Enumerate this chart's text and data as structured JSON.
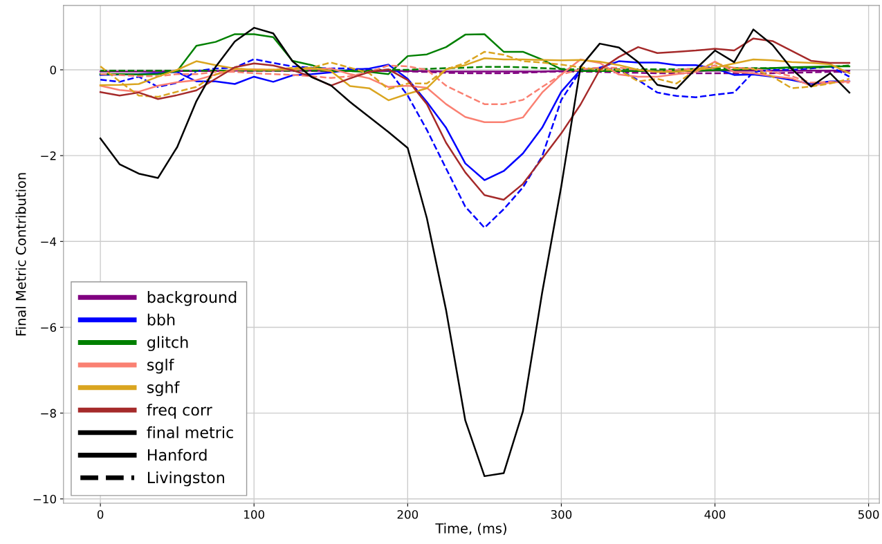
{
  "chart_data": {
    "type": "line",
    "xlabel": "Time, (ms)",
    "ylabel": "Final Metric Contribution",
    "x": [
      0,
      12.5,
      25,
      37.5,
      50,
      62.5,
      75,
      87.5,
      100,
      112.5,
      125,
      137.5,
      150,
      162.5,
      175,
      187.5,
      200,
      212.5,
      225,
      237.5,
      250,
      262.5,
      275,
      287.5,
      300,
      312.5,
      325,
      337.5,
      350,
      362.5,
      375,
      387.5,
      400,
      412.5,
      425,
      437.5,
      450,
      462.5,
      475,
      487.5
    ],
    "xlim": [
      -24,
      507
    ],
    "xticks": [
      0,
      100,
      200,
      300,
      400,
      500
    ],
    "ylim": [
      -10.1,
      1.5
    ],
    "yticks": [
      {
        "value": -10,
        "label": "−10"
      },
      {
        "value": -8,
        "label": "−8"
      },
      {
        "value": -6,
        "label": "−6"
      },
      {
        "value": -4,
        "label": "−4"
      },
      {
        "value": -2,
        "label": "−2"
      },
      0
    ],
    "grid": true,
    "legend": "lower left",
    "line_style": "solid",
    "series": [
      {
        "name": "background",
        "color": "#800080",
        "values": [
          -0.04,
          -0.04,
          -0.04,
          -0.04,
          -0.03,
          -0.03,
          -0.03,
          -0.02,
          -0.02,
          -0.02,
          -0.02,
          -0.02,
          -0.03,
          -0.03,
          -0.03,
          -0.03,
          -0.03,
          -0.03,
          -0.04,
          -0.04,
          -0.04,
          -0.04,
          -0.04,
          -0.04,
          -0.03,
          -0.03,
          -0.03,
          -0.03,
          -0.03,
          -0.03,
          -0.03,
          -0.03,
          -0.02,
          -0.02,
          -0.02,
          -0.02,
          -0.02,
          -0.02,
          -0.02,
          -0.02
        ]
      },
      {
        "color": "#800080",
        "line_style": "dashed",
        "values": [
          -0.02,
          -0.02,
          -0.02,
          -0.02,
          -0.02,
          -0.02,
          -0.02,
          -0.02,
          -0.02,
          -0.02,
          -0.02,
          -0.03,
          -0.03,
          -0.03,
          -0.03,
          -0.03,
          -0.04,
          -0.05,
          -0.07,
          -0.08,
          -0.08,
          -0.08,
          -0.07,
          -0.05,
          -0.04,
          -0.04,
          -0.05,
          -0.06,
          -0.07,
          -0.08,
          -0.08,
          -0.08,
          -0.08,
          -0.08,
          -0.08,
          -0.08,
          -0.07,
          -0.06,
          -0.05,
          -0.05
        ]
      },
      {
        "name": "bbh",
        "color": "#0000ff",
        "values": [
          -0.12,
          -0.11,
          -0.1,
          -0.08,
          -0.05,
          -0.27,
          -0.27,
          -0.33,
          -0.16,
          -0.28,
          -0.13,
          -0.1,
          -0.06,
          0,
          0.03,
          0.12,
          -0.21,
          -0.75,
          -1.35,
          -2.18,
          -2.57,
          -2.36,
          -1.95,
          -1.35,
          -0.51,
          0,
          0.05,
          0.2,
          0.17,
          0.17,
          0.11,
          0.11,
          0.03,
          -0.12,
          -0.11,
          -0.16,
          -0.24,
          -0.33,
          -0.27,
          -0.27
        ]
      },
      {
        "color": "#0000ff",
        "line_style": "dashed",
        "values": [
          -0.23,
          -0.28,
          -0.16,
          -0.4,
          -0.3,
          -0.03,
          0.03,
          0.05,
          0.25,
          0.16,
          0.08,
          0.05,
          0.03,
          0.03,
          0,
          0,
          -0.6,
          -1.4,
          -2.3,
          -3.19,
          -3.68,
          -3.25,
          -2.74,
          -2.02,
          -0.7,
          -0.02,
          0.05,
          0,
          -0.24,
          -0.53,
          -0.61,
          -0.64,
          -0.58,
          -0.53,
          -0.05,
          0,
          0,
          0.03,
          0.08,
          -0.16
        ]
      },
      {
        "name": "glitch",
        "color": "#008000",
        "values": [
          -0.1,
          -0.1,
          -0.11,
          -0.1,
          -0.03,
          0.56,
          0.65,
          0.83,
          0.83,
          0.76,
          0.21,
          0.11,
          -0.03,
          -0.03,
          -0.05,
          -0.1,
          0.32,
          0.36,
          0.53,
          0.82,
          0.83,
          0.42,
          0.42,
          0.24,
          0.01,
          -0.03,
          -0.03,
          -0.03,
          -0.03,
          -0.03,
          -0.02,
          -0.02,
          -0.01,
          0,
          0.02,
          0.04,
          0.06,
          0.07,
          0.08,
          0.08
        ]
      },
      {
        "color": "#008000",
        "line_style": "dashed",
        "values": [
          -0.02,
          -0.02,
          -0.02,
          -0.02,
          -0.02,
          -0.02,
          -0.02,
          -0.02,
          -0.02,
          -0.02,
          -0.02,
          -0.02,
          -0.02,
          -0.02,
          -0.02,
          0,
          0,
          0.02,
          0.04,
          0.05,
          0.07,
          0.07,
          0.06,
          0.04,
          0.02,
          0.01,
          0.01,
          0.01,
          0.01,
          0.01,
          0.01,
          0.02,
          0.03,
          0.04,
          0.04,
          0.04,
          0.04,
          0.05,
          0.07,
          0.1
        ]
      },
      {
        "name": "sglf",
        "color": "#fa8072",
        "values": [
          -0.37,
          -0.47,
          -0.51,
          -0.37,
          -0.29,
          -0.24,
          -0.11,
          0,
          0.01,
          0,
          0,
          0.02,
          0.03,
          -0.1,
          -0.2,
          -0.4,
          -0.37,
          -0.42,
          -0.8,
          -1.1,
          -1.22,
          -1.22,
          -1.11,
          -0.53,
          -0.11,
          0.24,
          0.16,
          -0.11,
          -0.16,
          -0.16,
          -0.1,
          -0.05,
          0.19,
          -0.05,
          -0.08,
          -0.15,
          -0.2,
          -0.37,
          -0.3,
          -0.27
        ]
      },
      {
        "color": "#fa8072",
        "line_style": "dashed",
        "values": [
          -0.1,
          -0.12,
          -0.15,
          -0.15,
          -0.1,
          -0.1,
          -0.05,
          -0.05,
          -0.08,
          -0.1,
          -0.12,
          -0.15,
          -0.19,
          -0.15,
          -0.05,
          0.1,
          0.08,
          0,
          -0.37,
          -0.59,
          -0.8,
          -0.8,
          -0.7,
          -0.4,
          -0.11,
          0.01,
          0.05,
          0.05,
          0,
          -0.05,
          0,
          0.03,
          0.1,
          0.05,
          0.03,
          -0.05,
          -0.15,
          -0.3,
          -0.28,
          -0.3
        ]
      },
      {
        "name": "sghf",
        "color": "#daa520",
        "values": [
          -0.36,
          -0.35,
          -0.33,
          -0.16,
          0,
          0.2,
          0.11,
          0.03,
          0,
          0,
          0.02,
          0.04,
          -0.03,
          -0.38,
          -0.43,
          -0.71,
          -0.56,
          -0.43,
          0.01,
          0.11,
          0.27,
          0.24,
          0.24,
          0.23,
          0.22,
          0.23,
          0.19,
          0.11,
          0,
          -0.05,
          -0.05,
          0,
          0.05,
          0.15,
          0.24,
          0.22,
          0.18,
          0.16,
          0.13,
          -0.08
        ]
      },
      {
        "color": "#daa520",
        "line_style": "dashed",
        "values": [
          0.08,
          -0.27,
          -0.6,
          -0.63,
          -0.51,
          -0.4,
          -0.11,
          0.03,
          0,
          0,
          0.05,
          0.05,
          0.17,
          0.05,
          -0.08,
          -0.45,
          -0.32,
          -0.32,
          0.01,
          0.16,
          0.42,
          0.35,
          0.2,
          0.17,
          0.12,
          0.06,
          0,
          0,
          -0.27,
          -0.21,
          -0.32,
          0,
          0.16,
          0.03,
          0.02,
          -0.16,
          -0.43,
          -0.39,
          -0.32,
          -0.21
        ]
      },
      {
        "name": "freq corr",
        "color": "#a52a2a",
        "values": [
          -0.52,
          -0.6,
          -0.53,
          -0.68,
          -0.59,
          -0.48,
          -0.21,
          0.06,
          0.15,
          0.1,
          -0.01,
          -0.16,
          -0.37,
          -0.2,
          -0.05,
          0.01,
          -0.24,
          -0.8,
          -1.7,
          -2.39,
          -2.92,
          -3.03,
          -2.66,
          -2.07,
          -1.48,
          -0.81,
          0,
          0.3,
          0.53,
          0.39,
          0.42,
          0.45,
          0.49,
          0.45,
          0.73,
          0.67,
          0.44,
          0.21,
          0.16,
          0.16
        ]
      },
      {
        "name": "final metric",
        "color": "#000000",
        "values": [
          -1.6,
          -2.2,
          -2.42,
          -2.52,
          -1.8,
          -0.73,
          0.07,
          0.66,
          0.98,
          0.85,
          0.2,
          -0.17,
          -0.36,
          -0.75,
          -1.1,
          -1.45,
          -1.82,
          -3.46,
          -5.6,
          -8.17,
          -9.47,
          -9.4,
          -7.96,
          -5.2,
          -2.71,
          0.07,
          0.61,
          0.52,
          0.18,
          -0.35,
          -0.44,
          0.02,
          0.45,
          0.18,
          0.94,
          0.58,
          0.02,
          -0.39,
          -0.08,
          -0.53
        ]
      },
      {
        "name": "Hanford",
        "color": "#000000",
        "values": [
          null,
          null,
          null,
          null,
          null,
          null,
          null,
          null,
          null,
          null,
          null,
          null,
          null,
          null,
          null,
          null,
          null,
          null,
          null,
          null,
          null,
          null,
          null,
          null,
          null,
          null,
          null,
          null,
          null,
          null,
          null,
          null,
          null,
          null,
          null,
          null,
          null,
          null,
          null,
          null
        ]
      },
      {
        "name": "Livingston",
        "color": "#000000",
        "line_style": "dashed",
        "values": [
          null,
          null,
          null,
          null,
          null,
          null,
          null,
          null,
          null,
          null,
          null,
          null,
          null,
          null,
          null,
          null,
          null,
          null,
          null,
          null,
          null,
          null,
          null,
          null,
          null,
          null,
          null,
          null,
          null,
          null,
          null,
          null,
          null,
          null,
          null,
          null,
          null,
          null,
          null,
          null
        ]
      }
    ]
  }
}
